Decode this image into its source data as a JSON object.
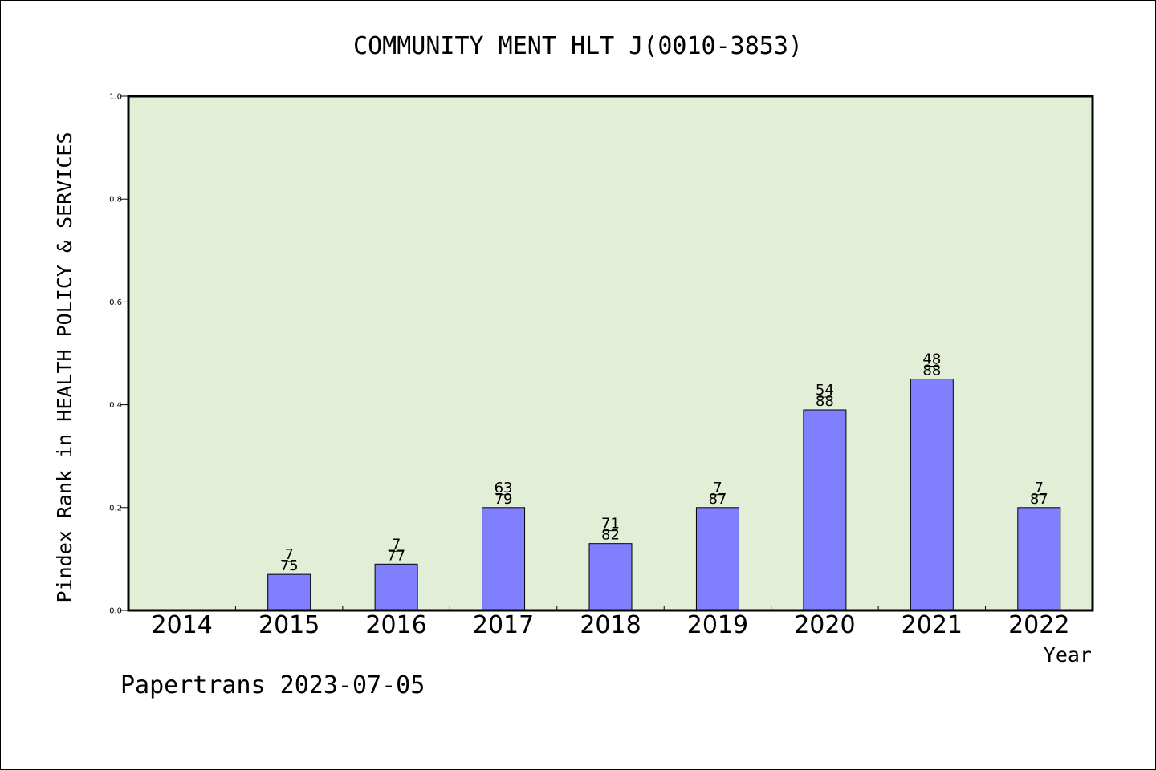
{
  "chart_data": {
    "type": "bar",
    "title": "COMMUNITY MENT HLT J(0010-3853)",
    "xlabel": "Year",
    "ylabel": "Pindex Rank in HEALTH POLICY & SERVICES",
    "categories": [
      "2014",
      "2015",
      "2016",
      "2017",
      "2018",
      "2019",
      "2020",
      "2021",
      "2022"
    ],
    "values": [
      null,
      0.07,
      0.09,
      0.2,
      0.13,
      0.2,
      0.39,
      0.45,
      0.2
    ],
    "data_labels": [
      null,
      {
        "top": "7",
        "bottom": "75"
      },
      {
        "top": "7",
        "bottom": "77"
      },
      {
        "top": "63",
        "bottom": "79"
      },
      {
        "top": "71",
        "bottom": "82"
      },
      {
        "top": "7",
        "bottom": "87"
      },
      {
        "top": "54",
        "bottom": "88"
      },
      {
        "top": "48",
        "bottom": "88"
      },
      {
        "top": "7",
        "bottom": "87"
      }
    ],
    "ylim": [
      0,
      1.0
    ],
    "yticks": [
      "0.0",
      "0.2",
      "0.4",
      "0.6",
      "0.8",
      "1.0"
    ],
    "grid": false,
    "colors": {
      "plot_background": "#e2efd6",
      "bar_fill": "#8080ff",
      "bar_stroke": "#000000",
      "axis": "#000000"
    }
  },
  "footer": {
    "text": "Papertrans 2023-07-05"
  }
}
